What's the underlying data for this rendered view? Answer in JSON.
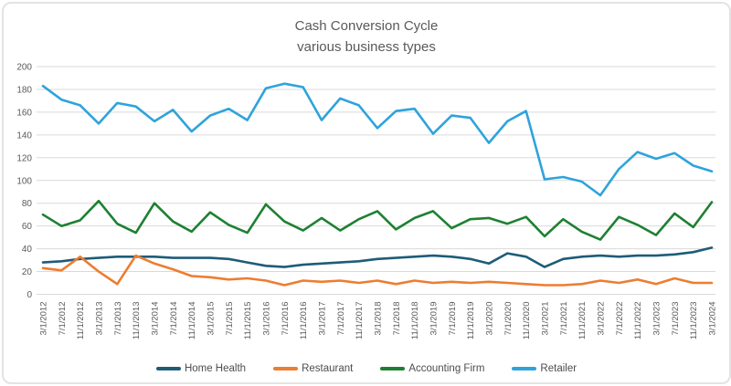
{
  "title": {
    "line1": "Cash Conversion Cycle",
    "line2": "various business types"
  },
  "axes": {
    "y_ticks": [
      0,
      20,
      40,
      60,
      80,
      100,
      120,
      140,
      160,
      180,
      200
    ],
    "label_color": "#595959",
    "gridline_color": "#d9d9d9"
  },
  "chart_data": {
    "type": "line",
    "title": "Cash Conversion Cycle",
    "subtitle": "various business types",
    "xlabel": "",
    "ylabel": "",
    "ylim": [
      0,
      200
    ],
    "ytick_step": 20,
    "grid": true,
    "legend_position": "bottom",
    "categories": [
      "3/1/2012",
      "7/1/2012",
      "11/1/2012",
      "3/1/2013",
      "7/1/2013",
      "11/1/2013",
      "3/1/2014",
      "7/1/2014",
      "11/1/2014",
      "3/1/2015",
      "7/1/2015",
      "11/1/2015",
      "3/1/2016",
      "7/1/2016",
      "11/1/2016",
      "3/1/2017",
      "7/1/2017",
      "11/1/2017",
      "3/1/2018",
      "7/1/2018",
      "11/1/2018",
      "3/1/2019",
      "7/1/2019",
      "11/1/2019",
      "3/1/2020",
      "7/1/2020",
      "11/1/2020",
      "3/1/2021",
      "7/1/2021",
      "11/1/2021",
      "3/1/2022",
      "7/1/2022",
      "11/1/2022",
      "3/1/2023",
      "7/1/2023",
      "11/1/2023",
      "3/1/2024"
    ],
    "series": [
      {
        "name": "Home Health",
        "color": "#1e5c78",
        "values": [
          28,
          29,
          31,
          32,
          33,
          33,
          33,
          32,
          32,
          32,
          31,
          28,
          25,
          24,
          26,
          27,
          28,
          29,
          31,
          32,
          33,
          34,
          33,
          31,
          27,
          36,
          33,
          24,
          31,
          33,
          34,
          33,
          34,
          34,
          35,
          37,
          41
        ]
      },
      {
        "name": "Restaurant",
        "color": "#ed7d31",
        "values": [
          23,
          21,
          33,
          20,
          9,
          34,
          27,
          22,
          16,
          15,
          13,
          14,
          12,
          8,
          12,
          11,
          12,
          10,
          12,
          9,
          12,
          10,
          11,
          10,
          11,
          10,
          9,
          8,
          8,
          9,
          12,
          10,
          13,
          9,
          14,
          10,
          10
        ]
      },
      {
        "name": "Accounting Firm",
        "color": "#1e8032",
        "values": [
          70,
          60,
          65,
          82,
          62,
          54,
          80,
          64,
          55,
          72,
          61,
          54,
          79,
          64,
          56,
          67,
          56,
          66,
          73,
          57,
          67,
          73,
          58,
          66,
          67,
          62,
          68,
          51,
          66,
          55,
          48,
          68,
          61,
          52,
          71,
          59,
          81
        ]
      },
      {
        "name": "Retailer",
        "color": "#2ea3dc",
        "values": [
          183,
          171,
          166,
          150,
          168,
          165,
          152,
          162,
          143,
          157,
          163,
          153,
          181,
          185,
          182,
          153,
          172,
          166,
          146,
          161,
          163,
          141,
          157,
          155,
          133,
          152,
          161,
          101,
          103,
          99,
          87,
          110,
          125,
          119,
          124,
          113,
          108
        ]
      }
    ]
  }
}
